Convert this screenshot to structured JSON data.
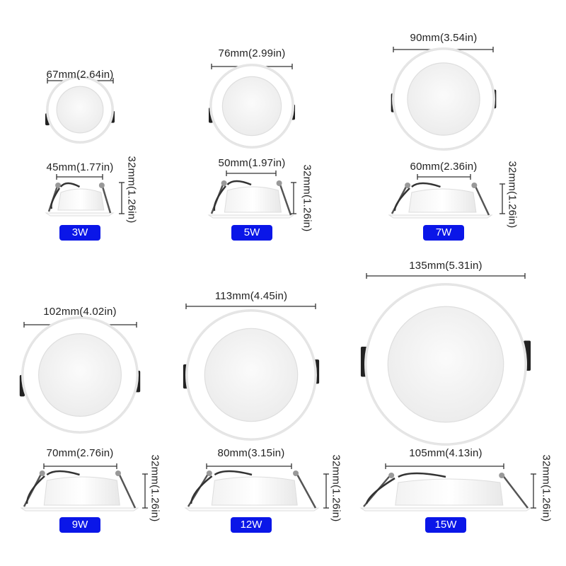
{
  "products": [
    {
      "wattage": "3W",
      "diameter": "67mm(2.64in)",
      "cutout": "45mm(1.77in)",
      "height": "32mm(1.26in)"
    },
    {
      "wattage": "5W",
      "diameter": "76mm(2.99in)",
      "cutout": "50mm(1.97in)",
      "height": "32mm(1.26in)"
    },
    {
      "wattage": "7W",
      "diameter": "90mm(3.54in)",
      "cutout": "60mm(2.36in)",
      "height": "32mm(1.26in)"
    },
    {
      "wattage": "9W",
      "diameter": "102mm(4.02in)",
      "cutout": "70mm(2.76in)",
      "height": "32mm(1.26in)"
    },
    {
      "wattage": "12W",
      "diameter": "113mm(4.45in)",
      "cutout": "80mm(3.15in)",
      "height": "32mm(1.26in)"
    },
    {
      "wattage": "15W",
      "diameter": "135mm(5.31in)",
      "cutout": "105mm(4.13in)",
      "height": "32mm(1.26in)"
    }
  ],
  "colors": {
    "badge": "#0a16e8",
    "lamp_face": "#f4f4f4",
    "rim": "#ffffff",
    "clip": "#222222"
  }
}
